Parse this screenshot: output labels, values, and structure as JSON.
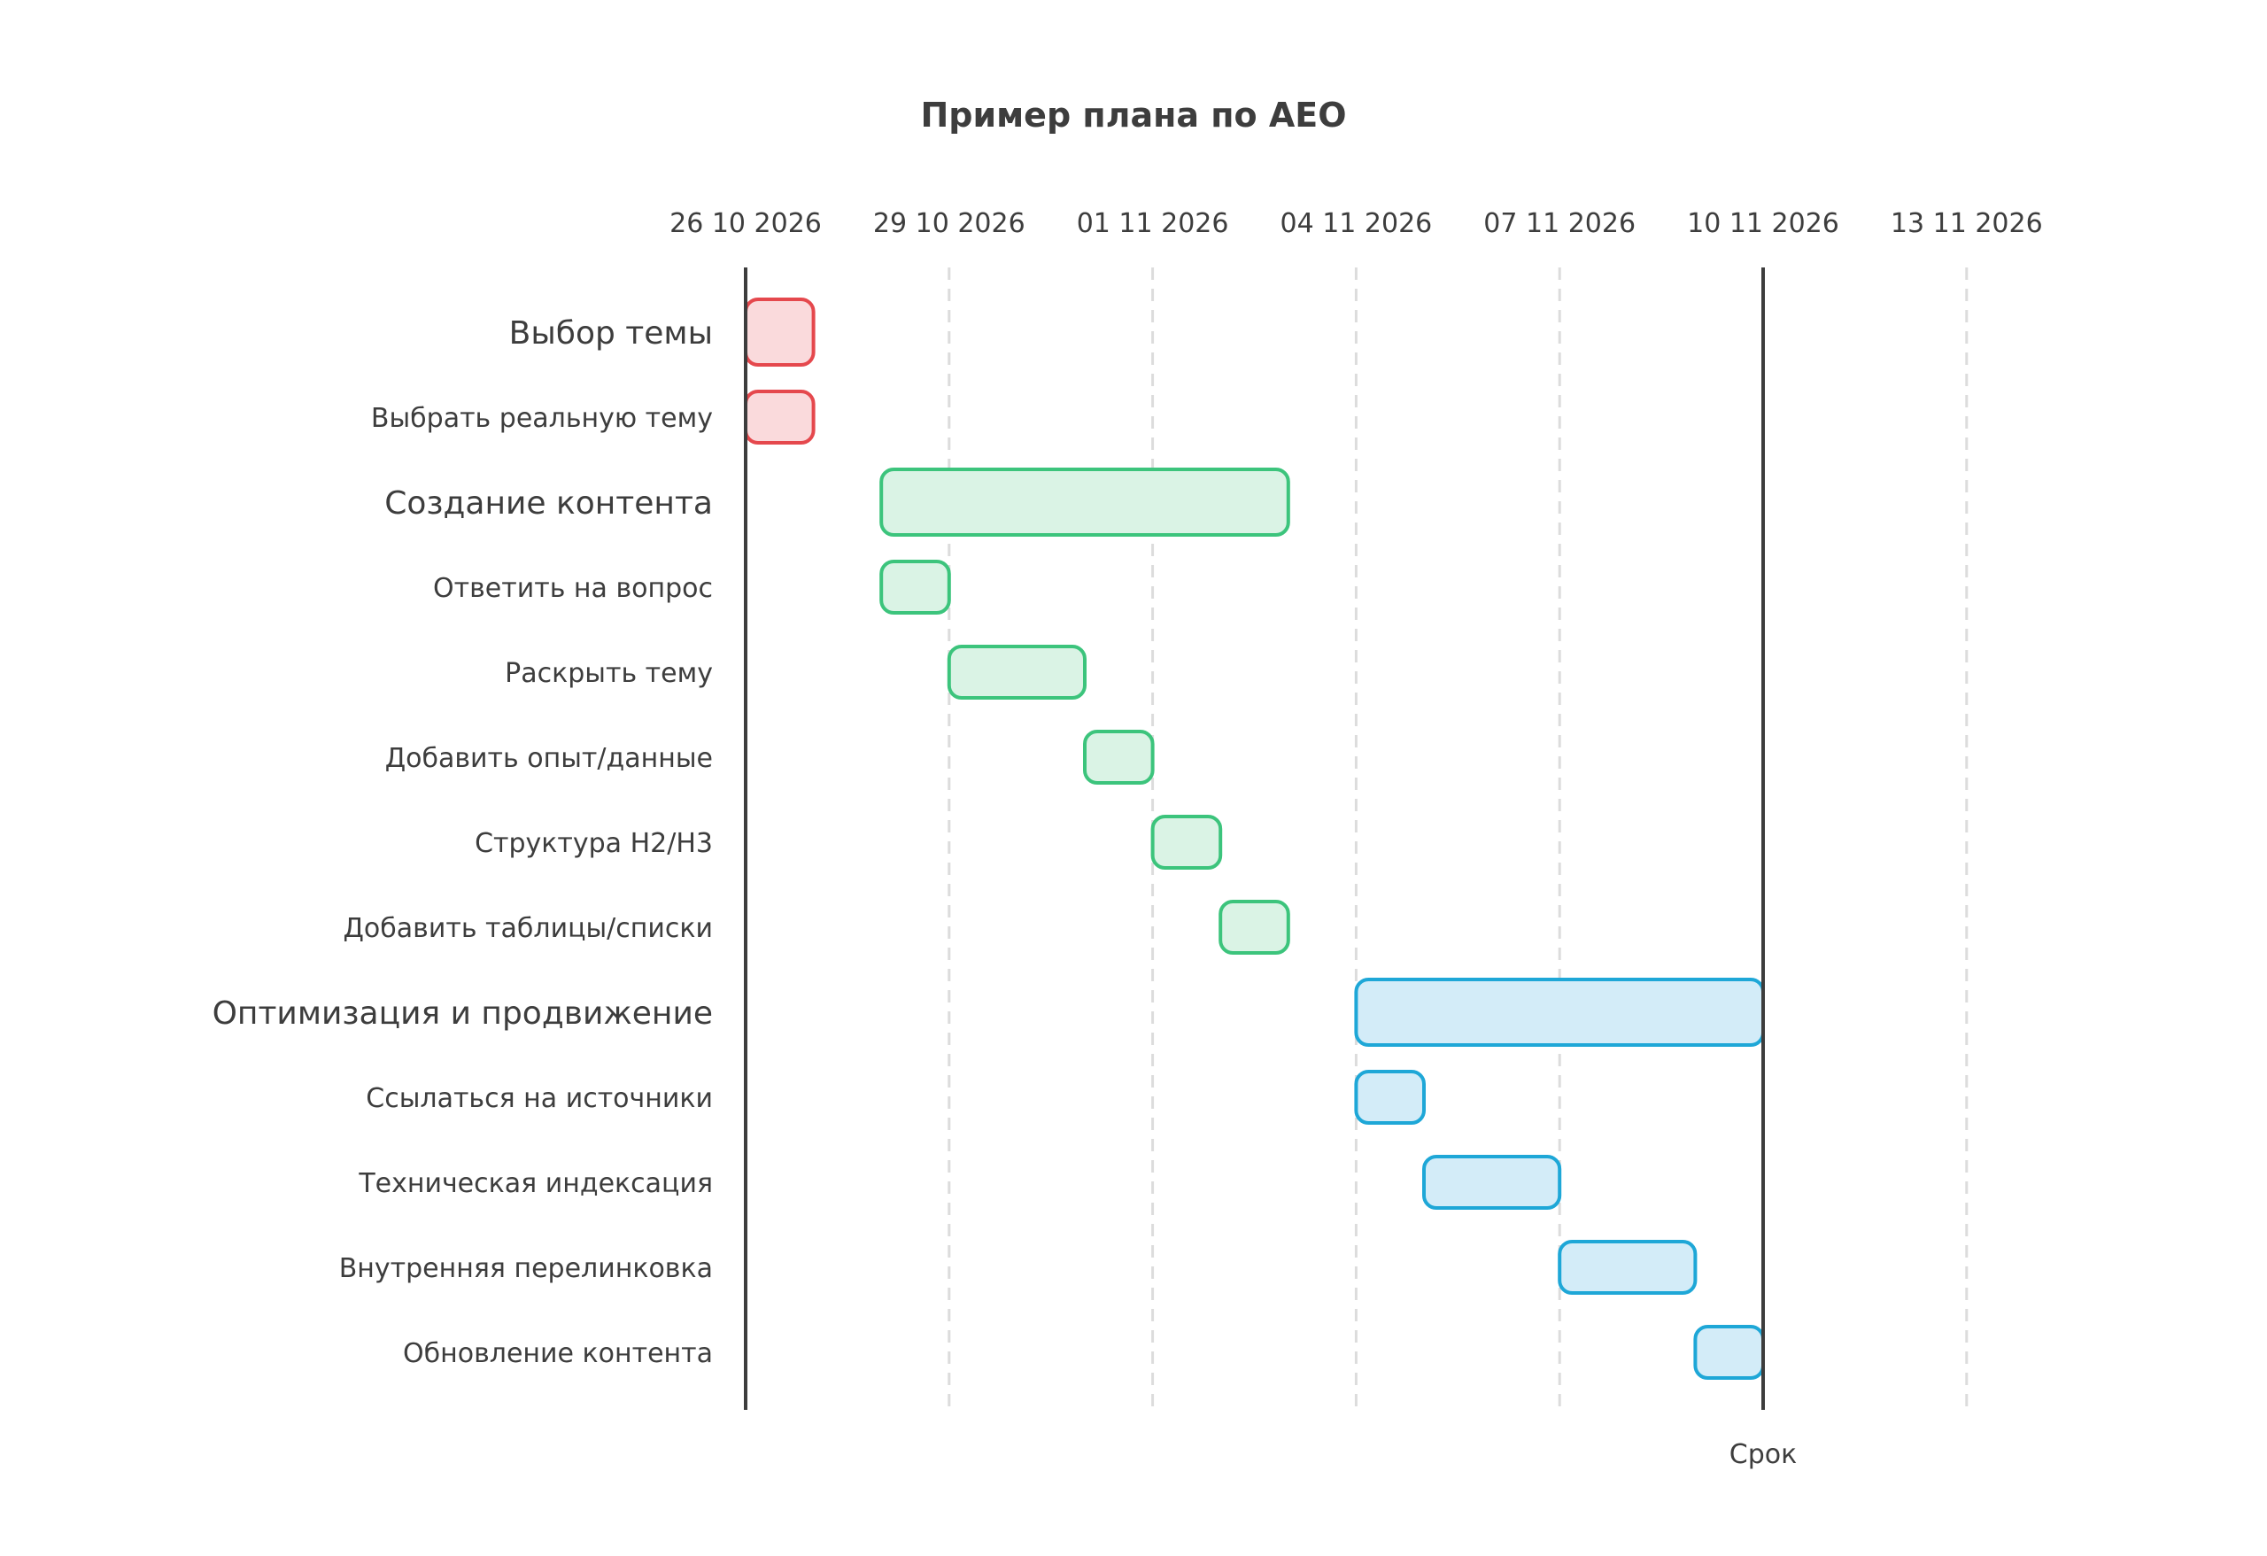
{
  "chart_data": {
    "type": "gantt",
    "title": "Пример плана по AEO",
    "x_axis": {
      "type": "date",
      "range": [
        "2026-10-26",
        "2026-11-14"
      ],
      "ticks": [
        {
          "date": "2026-10-26",
          "label": "26 10 2026"
        },
        {
          "date": "2026-10-29",
          "label": "29 10 2026"
        },
        {
          "date": "2026-11-01",
          "label": "01 11 2026"
        },
        {
          "date": "2026-11-04",
          "label": "04 11 2026"
        },
        {
          "date": "2026-11-07",
          "label": "07 11 2026"
        },
        {
          "date": "2026-11-10",
          "label": "10 11 2026"
        },
        {
          "date": "2026-11-13",
          "label": "13 11 2026"
        }
      ],
      "grid": "dashed vertical"
    },
    "groups": [
      {
        "name": "Выбор темы",
        "color": "#e5484d",
        "fill": "#fadadc",
        "start": "2026-10-26",
        "end": "2026-10-27",
        "tasks": [
          {
            "name": "Выбрать реальную тему",
            "start": "2026-10-26",
            "end": "2026-10-27"
          }
        ]
      },
      {
        "name": "Создание контента",
        "color": "#3cc47c",
        "fill": "#daf3e5",
        "start": "2026-10-28",
        "end": "2026-11-03",
        "tasks": [
          {
            "name": "Ответить на вопрос",
            "start": "2026-10-28",
            "end": "2026-10-29"
          },
          {
            "name": "Раскрыть тему",
            "start": "2026-10-29",
            "end": "2026-10-31"
          },
          {
            "name": "Добавить опыт/данные",
            "start": "2026-10-31",
            "end": "2026-11-01"
          },
          {
            "name": "Структура H2/H3",
            "start": "2026-11-01",
            "end": "2026-11-02"
          },
          {
            "name": "Добавить таблицы/списки",
            "start": "2026-11-02",
            "end": "2026-11-03"
          }
        ]
      },
      {
        "name": "Оптимизация и продвижение",
        "color": "#1ea7d7",
        "fill": "#d3ecf8",
        "start": "2026-11-04",
        "end": "2026-11-10",
        "tasks": [
          {
            "name": "Ссылаться на источники",
            "start": "2026-11-04",
            "end": "2026-11-05"
          },
          {
            "name": "Техническая индексация",
            "start": "2026-11-05",
            "end": "2026-11-07"
          },
          {
            "name": "Внутренняя перелинковка",
            "start": "2026-11-07",
            "end": "2026-11-09"
          },
          {
            "name": "Обновление контента",
            "start": "2026-11-09",
            "end": "2026-11-10"
          }
        ]
      }
    ],
    "markers": [
      {
        "date": "2026-11-10",
        "label": "Срок"
      }
    ],
    "text_color": "#3d3d3d",
    "grid_color": "#dcdcdc",
    "axis_color": "#3d3d3d"
  }
}
